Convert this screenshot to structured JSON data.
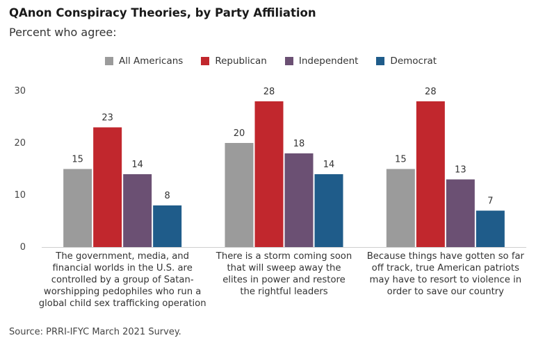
{
  "header": {
    "title": "QAnon Conspiracy Theories, by Party Affiliation",
    "subtitle": "Percent who agree:"
  },
  "source": "Source: PRRI-IFYC March 2021 Survey.",
  "chart_data": {
    "type": "bar",
    "title": "QAnon Conspiracy Theories, by Party Affiliation",
    "subtitle": "Percent who agree:",
    "xlabel": "",
    "ylabel": "",
    "ylim": [
      0,
      30
    ],
    "yticks": [
      0,
      10,
      20,
      30
    ],
    "grid": false,
    "legend_position": "top",
    "categories": [
      [
        "The government, media, and",
        "financial worlds in the U.S. are",
        "controlled by a group of Satan-",
        "worshipping pedophiles who run a",
        "global child sex trafficking operation"
      ],
      [
        "There is a storm coming soon",
        "that will sweep away the",
        "elites in power and restore",
        "the rightful leaders"
      ],
      [
        "Because things have gotten so far",
        "off track, true American patriots",
        "may have to resort to violence in",
        "order to save our country"
      ]
    ],
    "series": [
      {
        "name": "All Americans",
        "color": "#9b9b9b",
        "values": [
          15,
          20,
          15
        ]
      },
      {
        "name": "Republican",
        "color": "#c1272d",
        "values": [
          23,
          28,
          28
        ]
      },
      {
        "name": "Independent",
        "color": "#6b5073",
        "values": [
          14,
          18,
          13
        ]
      },
      {
        "name": "Democrat",
        "color": "#1f5c8a",
        "values": [
          8,
          14,
          7
        ]
      }
    ]
  }
}
